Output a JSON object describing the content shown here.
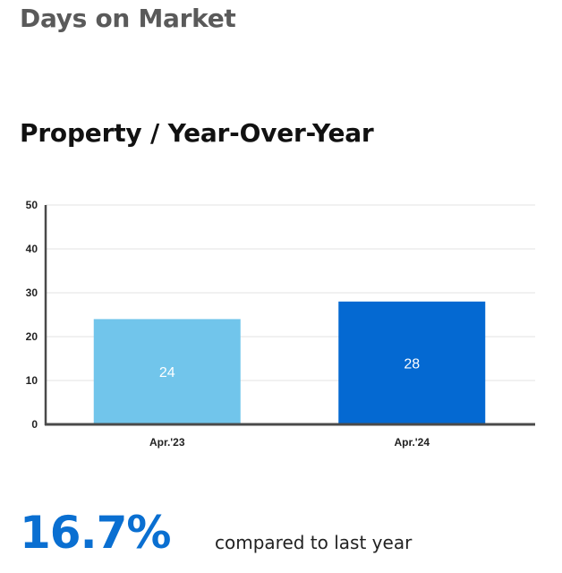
{
  "header": {
    "title": "Days on Market"
  },
  "section": {
    "title": "Property / Year-Over-Year"
  },
  "summary": {
    "change": "16.7%",
    "caption": "compared to last year"
  },
  "chart_data": {
    "type": "bar",
    "categories": [
      "Apr.'23",
      "Apr.'24"
    ],
    "values": [
      24,
      28
    ],
    "bar_colors": [
      "#71c5eb",
      "#0469d2"
    ],
    "ylim": [
      0,
      50
    ],
    "yticks": [
      0,
      10,
      20,
      30,
      40,
      50
    ],
    "grid": true,
    "data_labels": true,
    "title": "",
    "xlabel": "",
    "ylabel": ""
  }
}
